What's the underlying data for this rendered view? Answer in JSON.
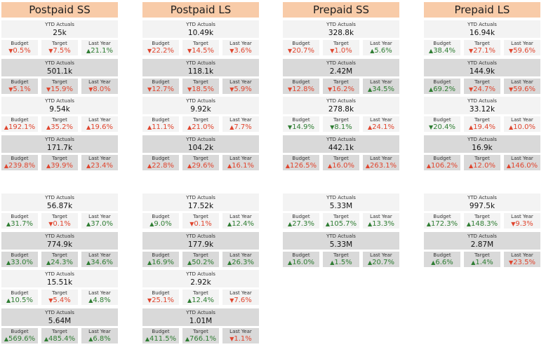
{
  "columns": [
    {
      "header": "Postpaid SS",
      "groups": [
        [
          {
            "ytd_label": "YTD Actuals",
            "ytd": "25k",
            "budget": {
              "label": "Budget",
              "dir": "down",
              "value": "0.5%"
            },
            "target": {
              "label": "Target",
              "dir": "down",
              "value": "7.5%"
            },
            "last_year": {
              "label": "Last Year",
              "dir": "up",
              "value": "21.1%"
            }
          },
          {
            "ytd_label": "YTD Actuals",
            "ytd": "501.1k",
            "budget": {
              "label": "Budget",
              "dir": "down",
              "value": "5.1%"
            },
            "target": {
              "label": "Target",
              "dir": "down",
              "value": "15.9%"
            },
            "last_year": {
              "label": "Last Year",
              "dir": "down",
              "value": "8.0%"
            }
          },
          {
            "ytd_label": "YTD Actuals",
            "ytd": "9.54k",
            "budget": {
              "label": "Budget",
              "dir": "up-red",
              "value": "192.1%"
            },
            "target": {
              "label": "Target",
              "dir": "up-red",
              "value": "35.2%"
            },
            "last_year": {
              "label": "Last Year",
              "dir": "up-red",
              "value": "19.6%"
            }
          },
          {
            "ytd_label": "YTD Actuals",
            "ytd": "171.7k",
            "budget": {
              "label": "Budget",
              "dir": "up-red",
              "value": "239.8%"
            },
            "target": {
              "label": "Target",
              "dir": "up-red",
              "value": "39.9%"
            },
            "last_year": {
              "label": "Last Year",
              "dir": "up-red",
              "value": "23.4%"
            }
          }
        ],
        [
          {
            "ytd_label": "YTD Actuals",
            "ytd": "56.87k",
            "budget": {
              "label": "Budget",
              "dir": "up",
              "value": "31.7%"
            },
            "target": {
              "label": "Target",
              "dir": "down",
              "value": "0.1%"
            },
            "last_year": {
              "label": "Last Year",
              "dir": "up",
              "value": "37.0%"
            }
          },
          {
            "ytd_label": "YTD Actuals",
            "ytd": "774.9k",
            "budget": {
              "label": "Budget",
              "dir": "up",
              "value": "33.0%"
            },
            "target": {
              "label": "Target",
              "dir": "up",
              "value": "24.3%"
            },
            "last_year": {
              "label": "Last Year",
              "dir": "up",
              "value": "34.6%"
            }
          },
          {
            "ytd_label": "YTD Actuals",
            "ytd": "15.51k",
            "budget": {
              "label": "Budget",
              "dir": "up",
              "value": "10.5%"
            },
            "target": {
              "label": "Target",
              "dir": "down",
              "value": "5.4%"
            },
            "last_year": {
              "label": "Last Year",
              "dir": "up",
              "value": "4.8%"
            }
          },
          {
            "ytd_label": "YTD Actuals",
            "ytd": "5.64M",
            "budget": {
              "label": "Budget",
              "dir": "up",
              "value": "569.6%"
            },
            "target": {
              "label": "Target",
              "dir": "up",
              "value": "485.4%"
            },
            "last_year": {
              "label": "Last Year",
              "dir": "up",
              "value": "6.8%"
            }
          }
        ]
      ]
    },
    {
      "header": "Postpaid LS",
      "groups": [
        [
          {
            "ytd_label": "YTD Actuals",
            "ytd": "10.49k",
            "budget": {
              "label": "Budget",
              "dir": "down",
              "value": "22.2%"
            },
            "target": {
              "label": "Target",
              "dir": "down",
              "value": "14.5%"
            },
            "last_year": {
              "label": "Last Year",
              "dir": "down",
              "value": "3.6%"
            }
          },
          {
            "ytd_label": "YTD Actuals",
            "ytd": "118.1k",
            "budget": {
              "label": "Budget",
              "dir": "down",
              "value": "12.7%"
            },
            "target": {
              "label": "Target",
              "dir": "down",
              "value": "18.5%"
            },
            "last_year": {
              "label": "Last Year",
              "dir": "down",
              "value": "5.9%"
            }
          },
          {
            "ytd_label": "YTD Actuals",
            "ytd": "9.92k",
            "budget": {
              "label": "Budget",
              "dir": "up-red",
              "value": "11.1%"
            },
            "target": {
              "label": "Target",
              "dir": "up-red",
              "value": "21.0%"
            },
            "last_year": {
              "label": "Last Year",
              "dir": "up-red",
              "value": "7.7%"
            }
          },
          {
            "ytd_label": "YTD Actuals",
            "ytd": "104.2k",
            "budget": {
              "label": "Budget",
              "dir": "up-red",
              "value": "22.8%"
            },
            "target": {
              "label": "Target",
              "dir": "up-red",
              "value": "29.6%"
            },
            "last_year": {
              "label": "Last Year",
              "dir": "up-red",
              "value": "16.1%"
            }
          }
        ],
        [
          {
            "ytd_label": "YTD Actuals",
            "ytd": "17.52k",
            "budget": {
              "label": "Budget",
              "dir": "up",
              "value": "9.0%"
            },
            "target": {
              "label": "Target",
              "dir": "down",
              "value": "0.1%"
            },
            "last_year": {
              "label": "Last Year",
              "dir": "up",
              "value": "12.4%"
            }
          },
          {
            "ytd_label": "YTD Actuals",
            "ytd": "177.9k",
            "budget": {
              "label": "Budget",
              "dir": "up",
              "value": "16.9%"
            },
            "target": {
              "label": "Target",
              "dir": "up",
              "value": "50.2%"
            },
            "last_year": {
              "label": "Last Year",
              "dir": "up",
              "value": "26.3%"
            }
          },
          {
            "ytd_label": "YTD Actuals",
            "ytd": "2.92k",
            "budget": {
              "label": "Budget",
              "dir": "down",
              "value": "25.1%"
            },
            "target": {
              "label": "Target",
              "dir": "up",
              "value": "12.4%"
            },
            "last_year": {
              "label": "Last Year",
              "dir": "down",
              "value": "7.6%"
            }
          },
          {
            "ytd_label": "YTD Actuals",
            "ytd": "1.01M",
            "budget": {
              "label": "Budget",
              "dir": "up",
              "value": "411.5%"
            },
            "target": {
              "label": "Target",
              "dir": "up",
              "value": "766.1%"
            },
            "last_year": {
              "label": "Last Year",
              "dir": "down",
              "value": "1.1%"
            }
          }
        ]
      ]
    },
    {
      "header": "Prepaid SS",
      "groups": [
        [
          {
            "ytd_label": "YTD Actuals",
            "ytd": "328.8k",
            "budget": {
              "label": "Budget",
              "dir": "down",
              "value": "20.7%"
            },
            "target": {
              "label": "Target",
              "dir": "down",
              "value": "1.0%"
            },
            "last_year": {
              "label": "Last Year",
              "dir": "up",
              "value": "5.6%"
            }
          },
          {
            "ytd_label": "YTD Actuals",
            "ytd": "2.42M",
            "budget": {
              "label": "Budget",
              "dir": "down",
              "value": "12.8%"
            },
            "target": {
              "label": "Target",
              "dir": "down",
              "value": "16.2%"
            },
            "last_year": {
              "label": "Last Year",
              "dir": "up",
              "value": "34.5%"
            }
          },
          {
            "ytd_label": "YTD Actuals",
            "ytd": "278.8k",
            "budget": {
              "label": "Budget",
              "dir": "down-green",
              "value": "14.9%"
            },
            "target": {
              "label": "Target",
              "dir": "down-green",
              "value": "8.1%"
            },
            "last_year": {
              "label": "Last Year",
              "dir": "up-red",
              "value": "24.1%"
            }
          },
          {
            "ytd_label": "YTD Actuals",
            "ytd": "442.1k",
            "budget": {
              "label": "Budget",
              "dir": "up-red",
              "value": "126.5%"
            },
            "target": {
              "label": "Target",
              "dir": "up-red",
              "value": "16.0%"
            },
            "last_year": {
              "label": "Last Year",
              "dir": "up-red",
              "value": "263.1%"
            }
          }
        ],
        [
          {
            "ytd_label": "YTD Actuals",
            "ytd": "5.33M",
            "budget": {
              "label": "Budget",
              "dir": "up",
              "value": "27.3%"
            },
            "target": {
              "label": "Target",
              "dir": "up",
              "value": "105.7%"
            },
            "last_year": {
              "label": "Last Year",
              "dir": "up",
              "value": "13.3%"
            }
          },
          {
            "ytd_label": "YTD Actuals",
            "ytd": "5.33M",
            "budget": {
              "label": "Budget",
              "dir": "up",
              "value": "16.0%"
            },
            "target": {
              "label": "Target",
              "dir": "up",
              "value": "1.5%"
            },
            "last_year": {
              "label": "Last Year",
              "dir": "up",
              "value": "20.7%"
            }
          }
        ]
      ]
    },
    {
      "header": "Prepaid LS",
      "groups": [
        [
          {
            "ytd_label": "YTD Actuals",
            "ytd": "16.94k",
            "budget": {
              "label": "Budget",
              "dir": "up",
              "value": "38.4%"
            },
            "target": {
              "label": "Target",
              "dir": "down",
              "value": "27.1%"
            },
            "last_year": {
              "label": "Last Year",
              "dir": "down",
              "value": "59.6%"
            }
          },
          {
            "ytd_label": "YTD Actuals",
            "ytd": "144.9k",
            "budget": {
              "label": "Budget",
              "dir": "up",
              "value": "69.2%"
            },
            "target": {
              "label": "Target",
              "dir": "down",
              "value": "24.7%"
            },
            "last_year": {
              "label": "Last Year",
              "dir": "down",
              "value": "59.6%"
            }
          },
          {
            "ytd_label": "YTD Actuals",
            "ytd": "33.12k",
            "budget": {
              "label": "Budget",
              "dir": "down-green",
              "value": "20.4%"
            },
            "target": {
              "label": "Target",
              "dir": "up-red",
              "value": "19.4%"
            },
            "last_year": {
              "label": "Last Year",
              "dir": "up-red",
              "value": "10.0%"
            }
          },
          {
            "ytd_label": "YTD Actuals",
            "ytd": "16.9k",
            "budget": {
              "label": "Budget",
              "dir": "up-red",
              "value": "106.2%"
            },
            "target": {
              "label": "Target",
              "dir": "up-red",
              "value": "12.0%"
            },
            "last_year": {
              "label": "Last Year",
              "dir": "up-red",
              "value": "146.0%"
            }
          }
        ],
        [
          {
            "ytd_label": "YTD Actuals",
            "ytd": "997.5k",
            "budget": {
              "label": "Budget",
              "dir": "up",
              "value": "172.3%"
            },
            "target": {
              "label": "Target",
              "dir": "up",
              "value": "148.3%"
            },
            "last_year": {
              "label": "Last Year",
              "dir": "down",
              "value": "9.3%"
            }
          },
          {
            "ytd_label": "YTD Actuals",
            "ytd": "2.87M",
            "budget": {
              "label": "Budget",
              "dir": "up",
              "value": "6.6%"
            },
            "target": {
              "label": "Target",
              "dir": "up",
              "value": "1.4%"
            },
            "last_year": {
              "label": "Last Year",
              "dir": "down",
              "value": "23.5%"
            }
          }
        ]
      ]
    }
  ],
  "colors": {
    "up": "#2e7d32",
    "down": "#e0452e",
    "header_bg": "#f8cba8",
    "light_bg": "#f3f3f3",
    "dark_bg": "#d9d9d9"
  }
}
